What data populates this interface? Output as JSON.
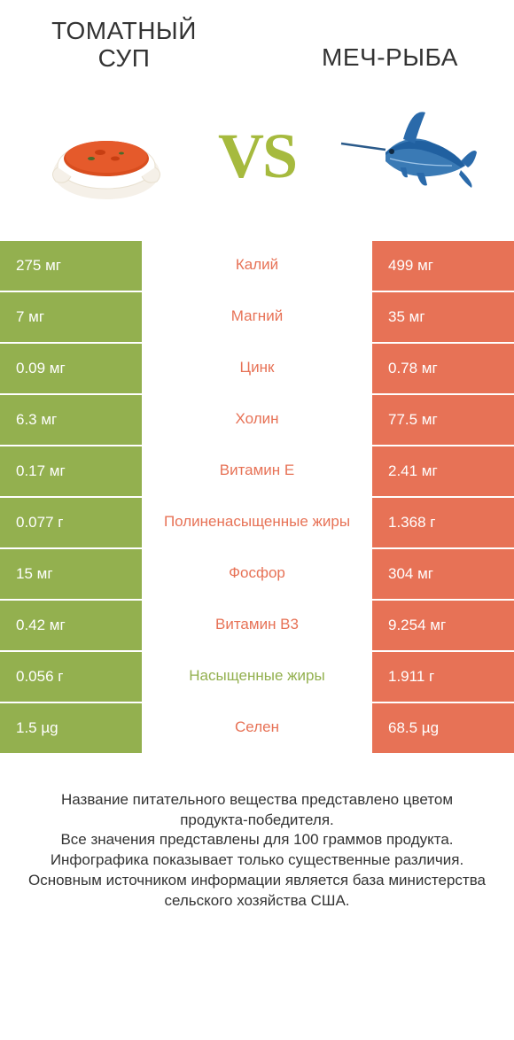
{
  "colors": {
    "green": "#93b04f",
    "orange": "#e77256",
    "vs": "#a6ba3e"
  },
  "leftTitle": "Томатный суп",
  "rightTitle": "Меч-рыба",
  "vs": "VS",
  "rows": [
    {
      "left": "275 мг",
      "mid": "Калий",
      "right": "499 мг",
      "winner": "right"
    },
    {
      "left": "7 мг",
      "mid": "Магний",
      "right": "35 мг",
      "winner": "right"
    },
    {
      "left": "0.09 мг",
      "mid": "Цинк",
      "right": "0.78 мг",
      "winner": "right"
    },
    {
      "left": "6.3 мг",
      "mid": "Холин",
      "right": "77.5 мг",
      "winner": "right"
    },
    {
      "left": "0.17 мг",
      "mid": "Витамин E",
      "right": "2.41 мг",
      "winner": "right"
    },
    {
      "left": "0.077 г",
      "mid": "Полиненасыщенные жиры",
      "right": "1.368 г",
      "winner": "right"
    },
    {
      "left": "15 мг",
      "mid": "Фосфор",
      "right": "304 мг",
      "winner": "right"
    },
    {
      "left": "0.42 мг",
      "mid": "Витамин B3",
      "right": "9.254 мг",
      "winner": "right"
    },
    {
      "left": "0.056 г",
      "mid": "Насыщенные жиры",
      "right": "1.911 г",
      "winner": "left"
    },
    {
      "left": "1.5 µg",
      "mid": "Селен",
      "right": "68.5 µg",
      "winner": "right"
    }
  ],
  "footer": "Название питательного вещества представлено цветом продукта-победителя.\nВсе значения представлены для 100 граммов продукта.\nИнфографика показывает только существенные различия.\nОсновным источником информации является база министерства сельского хозяйства США."
}
